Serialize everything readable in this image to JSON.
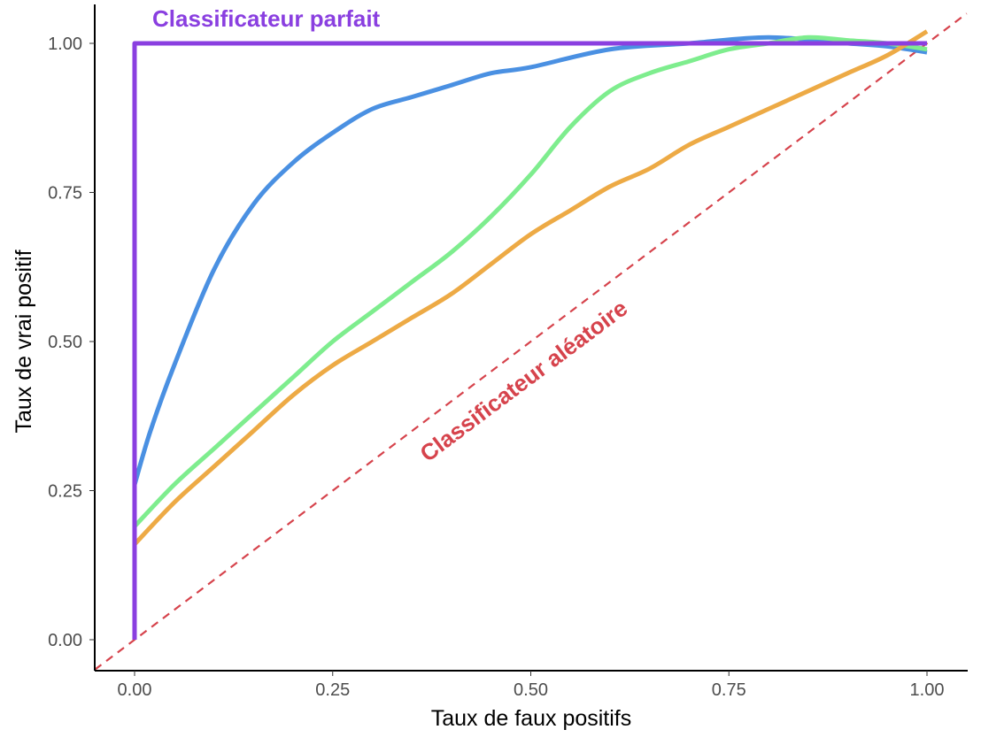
{
  "chart_data": {
    "type": "line",
    "xlabel": "Taux de faux positifs",
    "ylabel": "Taux de vrai positif",
    "xlim": [
      -0.05,
      1.05
    ],
    "ylim": [
      -0.05,
      1.08
    ],
    "x_ticks": [
      "0.00",
      "0.25",
      "0.50",
      "0.75",
      "1.00"
    ],
    "y_ticks": [
      "0.00",
      "0.25",
      "0.50",
      "0.75",
      "1.00"
    ],
    "grid": false,
    "legend": "none",
    "annotations": [
      {
        "text": "Classificateur parfait",
        "color": "#8a3fe0"
      },
      {
        "text": "Classificateur aléatoire",
        "color": "#d6434c"
      }
    ],
    "series": [
      {
        "style": "solid",
        "color": "#4a90e2",
        "points": [
          [
            0,
            0.26
          ],
          [
            0.02,
            0.35
          ],
          [
            0.05,
            0.46
          ],
          [
            0.1,
            0.62
          ],
          [
            0.15,
            0.73
          ],
          [
            0.2,
            0.8
          ],
          [
            0.25,
            0.85
          ],
          [
            0.3,
            0.89
          ],
          [
            0.35,
            0.91
          ],
          [
            0.4,
            0.93
          ],
          [
            0.45,
            0.95
          ],
          [
            0.5,
            0.96
          ],
          [
            0.6,
            0.99
          ],
          [
            0.7,
            1.0
          ],
          [
            0.8,
            1.01
          ],
          [
            0.9,
            1.0
          ],
          [
            0.95,
            0.995
          ],
          [
            1.0,
            0.985
          ]
        ]
      },
      {
        "style": "solid",
        "color": "#7eed8e",
        "points": [
          [
            0,
            0.19
          ],
          [
            0.05,
            0.26
          ],
          [
            0.1,
            0.32
          ],
          [
            0.15,
            0.38
          ],
          [
            0.2,
            0.44
          ],
          [
            0.25,
            0.5
          ],
          [
            0.3,
            0.55
          ],
          [
            0.35,
            0.6
          ],
          [
            0.4,
            0.65
          ],
          [
            0.45,
            0.71
          ],
          [
            0.5,
            0.78
          ],
          [
            0.55,
            0.86
          ],
          [
            0.6,
            0.92
          ],
          [
            0.65,
            0.95
          ],
          [
            0.7,
            0.97
          ],
          [
            0.75,
            0.99
          ],
          [
            0.8,
            1.0
          ],
          [
            0.85,
            1.01
          ],
          [
            0.9,
            1.005
          ],
          [
            0.95,
            1.0
          ],
          [
            1.0,
            0.99
          ]
        ]
      },
      {
        "style": "solid",
        "color": "#edaa45",
        "points": [
          [
            0,
            0.16
          ],
          [
            0.05,
            0.23
          ],
          [
            0.1,
            0.29
          ],
          [
            0.15,
            0.35
          ],
          [
            0.2,
            0.41
          ],
          [
            0.25,
            0.46
          ],
          [
            0.3,
            0.5
          ],
          [
            0.35,
            0.54
          ],
          [
            0.4,
            0.58
          ],
          [
            0.45,
            0.63
          ],
          [
            0.5,
            0.68
          ],
          [
            0.55,
            0.72
          ],
          [
            0.6,
            0.76
          ],
          [
            0.65,
            0.79
          ],
          [
            0.7,
            0.83
          ],
          [
            0.75,
            0.86
          ],
          [
            0.8,
            0.89
          ],
          [
            0.85,
            0.92
          ],
          [
            0.9,
            0.95
          ],
          [
            0.95,
            0.98
          ],
          [
            1.0,
            1.02
          ]
        ]
      },
      {
        "style": "solid",
        "color": "#8a3fe0",
        "points": [
          [
            0,
            0
          ],
          [
            0,
            1
          ],
          [
            1,
            1
          ]
        ]
      },
      {
        "style": "dashed",
        "color": "#d6434c",
        "points": [
          [
            -0.05,
            -0.05
          ],
          [
            1.05,
            1.05
          ]
        ]
      }
    ]
  }
}
